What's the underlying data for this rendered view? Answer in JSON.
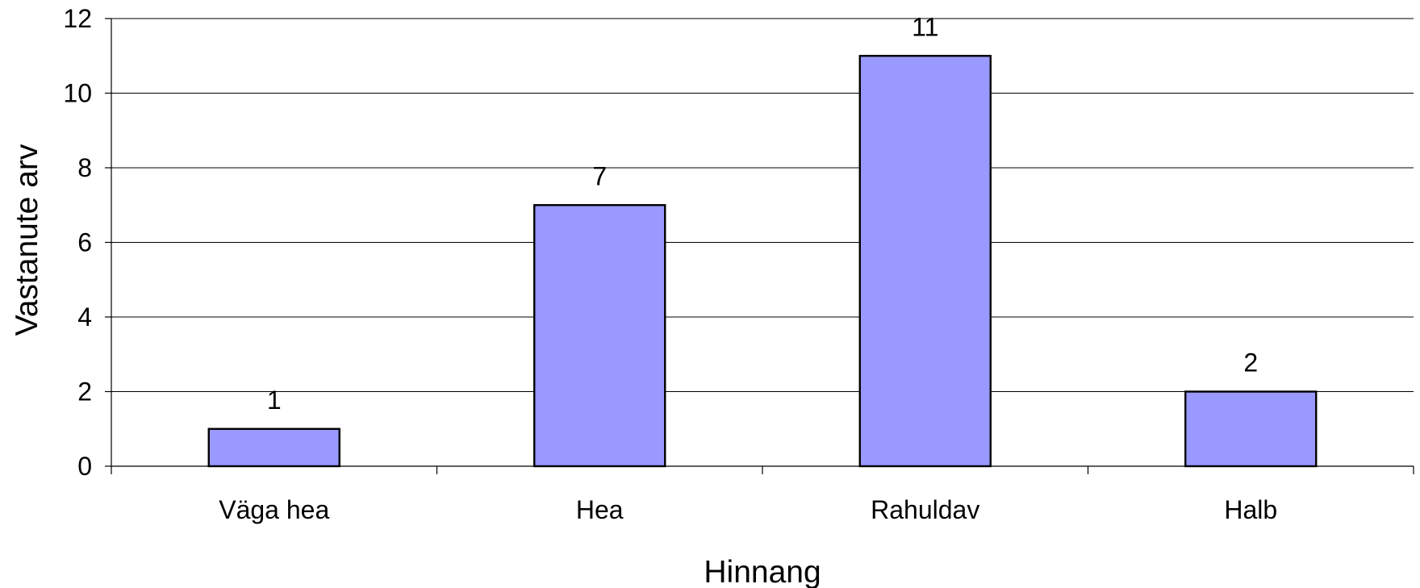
{
  "chart_data": {
    "type": "bar",
    "categories": [
      "Väga hea",
      "Hea",
      "Rahuldav",
      "Halb"
    ],
    "values": [
      1,
      7,
      11,
      2
    ],
    "title": "",
    "xlabel": "Hinnang",
    "ylabel": "Vastanute arv",
    "ylim": [
      0,
      12
    ],
    "yticks": [
      0,
      2,
      4,
      6,
      8,
      10,
      12
    ],
    "grid": true,
    "legend": "none",
    "data_labels": true,
    "colors": {
      "bar_fill": "#9999ff",
      "bar_stroke": "#000000",
      "grid": "#000000",
      "axis": "#000000"
    }
  }
}
